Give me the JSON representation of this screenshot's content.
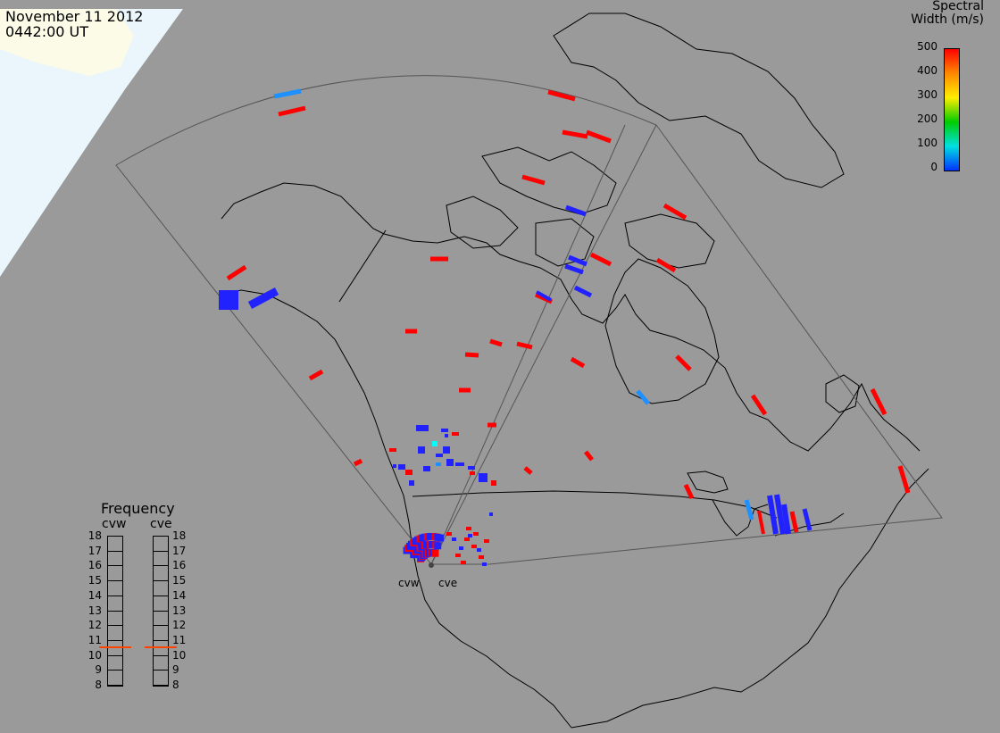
{
  "header": {
    "date": "November 11 2012",
    "time": "0442:00 UT"
  },
  "legend": {
    "title_line1": "Spectral",
    "title_line2": "Width (m/s)",
    "ticks": [
      "500",
      "400",
      "300",
      "200",
      "100",
      "0"
    ],
    "colors": [
      "#ff0000",
      "#ff8800",
      "#ffee00",
      "#00cc00",
      "#00e0e0",
      "#0033ff"
    ]
  },
  "radars": {
    "west": "cvw",
    "east": "cve"
  },
  "frequency": {
    "title": "Frequency",
    "radar_left": "cvw",
    "radar_right": "cve",
    "scale": [
      "18",
      "17",
      "16",
      "15",
      "14",
      "13",
      "12",
      "11",
      "10",
      "9",
      "8"
    ],
    "value_mhz": 10.6,
    "marker_color": "#ff4400"
  },
  "colors": {
    "background": "#9a9a9a",
    "daylight": "#eaf6fb",
    "high_width": "#ff0000",
    "low_width": "#2222ff",
    "mid_width": "#1e90ff"
  }
}
